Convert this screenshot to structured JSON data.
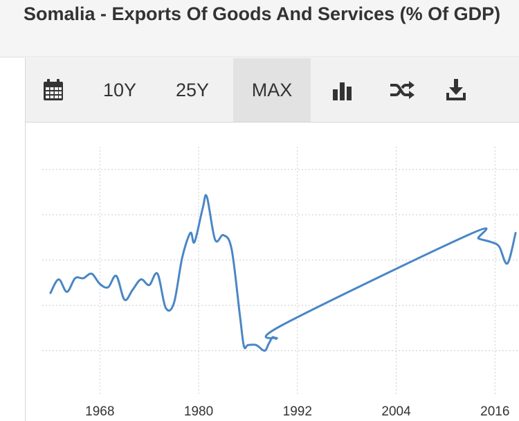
{
  "header": {
    "title": "Somalia - Exports Of Goods And Services (% Of GDP)"
  },
  "toolbar": {
    "calendar_icon": "calendar-icon",
    "range_10y": "10Y",
    "range_25y": "25Y",
    "range_max": "MAX",
    "active_range": "MAX",
    "chart_type_icon": "bar-chart-icon",
    "compare_icon": "shuffle-icon",
    "download_icon": "download-icon"
  },
  "colors": {
    "line": "#4a86c5",
    "grid": "#cccccc",
    "text": "#333333"
  },
  "chart_data": {
    "type": "line",
    "title": "",
    "xlabel": "",
    "ylabel": "",
    "x_ticks": [
      "1968",
      "1980",
      "1992",
      "2004",
      "2016"
    ],
    "xlim": [
      1961,
      2019
    ],
    "ylim": [
      0,
      11
    ],
    "grid": true,
    "x_gridlines": [
      1968,
      1980,
      1992,
      2004,
      2016
    ],
    "y_gridlines": [
      0,
      1,
      2,
      3,
      4,
      5,
      6,
      7,
      8,
      9,
      10,
      11
    ],
    "series": [
      {
        "name": "",
        "points": [
          [
            1962.0,
            4.55
          ],
          [
            1963.0,
            5.15
          ],
          [
            1964.0,
            4.6
          ],
          [
            1965.0,
            5.2
          ],
          [
            1966.0,
            5.2
          ],
          [
            1967.0,
            5.4
          ],
          [
            1968.0,
            4.95
          ],
          [
            1969.0,
            4.8
          ],
          [
            1970.0,
            5.3
          ],
          [
            1971.0,
            4.25
          ],
          [
            1972.0,
            4.7
          ],
          [
            1973.0,
            5.15
          ],
          [
            1974.0,
            4.9
          ],
          [
            1975.0,
            5.4
          ],
          [
            1976.0,
            3.9
          ],
          [
            1977.0,
            4.1
          ],
          [
            1978.0,
            6.1
          ],
          [
            1979.0,
            7.2
          ],
          [
            1979.5,
            6.8
          ],
          [
            1980.5,
            8.3
          ],
          [
            1981.0,
            8.8
          ],
          [
            1982.0,
            6.9
          ],
          [
            1983.0,
            7.1
          ],
          [
            1984.0,
            6.5
          ],
          [
            1985.0,
            3.6
          ],
          [
            1985.5,
            2.2
          ],
          [
            1986.0,
            2.25
          ],
          [
            1987.0,
            2.25
          ],
          [
            1988.0,
            2.0
          ],
          [
            1988.5,
            2.3
          ],
          [
            1989.0,
            2.6
          ],
          [
            1989.5,
            2.55
          ],
          [
            1990.0,
            3.1
          ],
          [
            2013.0,
            7.15
          ],
          [
            2014.0,
            6.95
          ],
          [
            2015.5,
            6.8
          ],
          [
            2016.5,
            6.6
          ],
          [
            2017.5,
            5.85
          ],
          [
            2018.5,
            7.2
          ]
        ]
      }
    ]
  }
}
